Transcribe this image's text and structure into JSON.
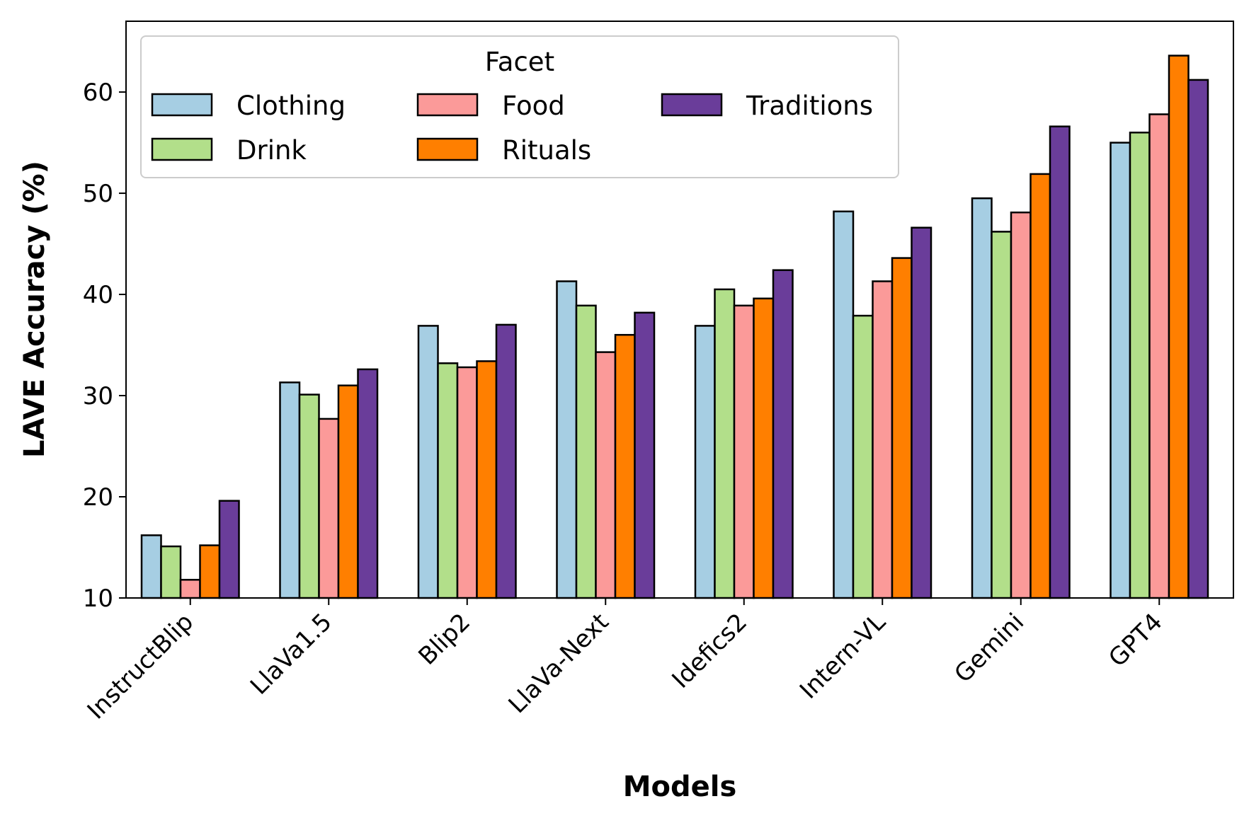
{
  "chart_data": {
    "type": "bar",
    "xlabel": "Models",
    "ylabel": "LAVE Accuracy (%)",
    "ylim": [
      10,
      67
    ],
    "yticks": [
      10,
      20,
      30,
      40,
      50,
      60
    ],
    "categories": [
      "InstructBlip",
      "LlaVa1.5",
      "Blip2",
      "LlaVa-Next",
      "Idefics2",
      "Intern-VL",
      "Gemini",
      "GPT4"
    ],
    "legend": {
      "title": "Facet",
      "placement": "upper-left",
      "columns": 3
    },
    "series": [
      {
        "name": "Clothing",
        "color": "#a6cee3",
        "values": [
          16.2,
          31.3,
          36.9,
          41.3,
          36.9,
          48.2,
          49.5,
          55.0
        ]
      },
      {
        "name": "Drink",
        "color": "#b2df8a",
        "values": [
          15.1,
          30.1,
          33.2,
          38.9,
          40.5,
          37.9,
          46.2,
          56.0
        ]
      },
      {
        "name": "Food",
        "color": "#fb9a99",
        "values": [
          11.8,
          27.7,
          32.8,
          34.3,
          38.9,
          41.3,
          48.1,
          57.8
        ]
      },
      {
        "name": "Rituals",
        "color": "#ff7f00",
        "values": [
          15.2,
          31.0,
          33.4,
          36.0,
          39.6,
          43.6,
          51.9,
          63.6
        ]
      },
      {
        "name": "Traditions",
        "color": "#6a3d9a",
        "values": [
          19.6,
          32.6,
          37.0,
          38.2,
          42.4,
          46.6,
          56.6,
          61.2
        ]
      }
    ]
  }
}
